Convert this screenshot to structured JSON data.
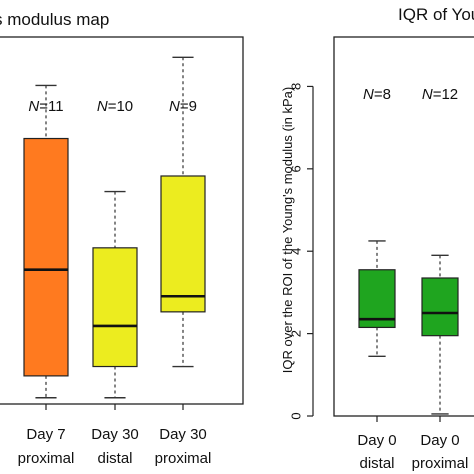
{
  "chart_data": [
    {
      "type": "box",
      "title": "s modulus map",
      "categories": [
        "Day 7\nproximal",
        "Day 30\ndistal",
        "Day 30\nproximal"
      ],
      "category_lines": [
        [
          "Day 7",
          "proximal"
        ],
        [
          "Day 30",
          "distal"
        ],
        [
          "Day 30",
          "proximal"
        ]
      ],
      "n_labels": [
        {
          "prefix": "N",
          "text": "=11"
        },
        {
          "prefix": "N",
          "text": "=10"
        },
        {
          "prefix": "N",
          "text": "=9"
        }
      ],
      "boxes": [
        {
          "min": 0.4,
          "q1": 1.8,
          "median": 8.6,
          "q3": 17.0,
          "max": 20.4,
          "color": "#ff7a1f"
        },
        {
          "min": 0.4,
          "q1": 2.4,
          "median": 5.0,
          "q3": 10.0,
          "max": 13.6,
          "color": "#ecec1f"
        },
        {
          "min": 2.4,
          "q1": 5.9,
          "median": 6.9,
          "q3": 14.6,
          "max": 22.2,
          "color": "#ecec1f"
        }
      ],
      "ylim": [
        0,
        23.5
      ],
      "yticks": [],
      "xlabel": "",
      "ylabel": ""
    },
    {
      "type": "box",
      "title": "IQR of Youn",
      "categories": [
        "Day 0\ndistal",
        "Day 0\nproximal"
      ],
      "category_lines": [
        [
          "Day 0",
          "distal"
        ],
        [
          "Day 0",
          "proximal"
        ]
      ],
      "n_labels": [
        {
          "prefix": "N",
          "text": "=8"
        },
        {
          "prefix": "N",
          "text": "=12"
        }
      ],
      "boxes": [
        {
          "min": 1.45,
          "q1": 2.15,
          "median": 2.35,
          "q3": 3.55,
          "max": 4.25,
          "color": "#1fa51f"
        },
        {
          "min": 0.05,
          "q1": 1.95,
          "median": 2.5,
          "q3": 3.35,
          "max": 3.9,
          "color": "#1fa51f"
        }
      ],
      "ylim": [
        0,
        9.2
      ],
      "yticks": [
        "0",
        "2",
        "4",
        "6",
        "8"
      ],
      "ytick_values": [
        0,
        2,
        4,
        6,
        8
      ],
      "xlabel": "",
      "ylabel": "IQR over the ROI of the Young's modulus (in kPa)"
    }
  ]
}
